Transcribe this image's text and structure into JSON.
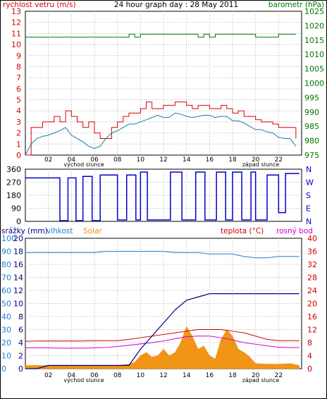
{
  "header": {
    "left_label": "rychlost vetru (m/s)",
    "title": "24 hour graph day : 28 May 2011",
    "right_label": "barometr (hPa)"
  },
  "colors": {
    "wind": "#dd0000",
    "wind_avg": "#1a7fa0",
    "baro": "#007700",
    "dir": "#0000cc",
    "rain": "#000080",
    "hum": "#1e7fd0",
    "solar": "#f0900a",
    "temp": "#cc0000",
    "dew": "#cc00cc",
    "grid": "#b4b4b4",
    "text_black": "#000000"
  },
  "x_ticks": [
    "02",
    "04",
    "06",
    "08",
    "10",
    "12",
    "14",
    "16",
    "18",
    "20",
    "22"
  ],
  "sunrise_label": "východ slunce",
  "sunset_label": "západ slunce",
  "chart_data": [
    {
      "type": "line",
      "name": "wind-baro",
      "title": "24 hour graph day : 28 May 2011",
      "ylabel_left": "rychlost vetru (m/s)",
      "ylabel_right": "barometr (hPa)",
      "ylim_left": [
        0,
        13
      ],
      "ylim_right": [
        975,
        1025
      ],
      "y_ticks_left": [
        "0",
        "1",
        "2",
        "3",
        "4",
        "5",
        "6",
        "7",
        "8",
        "9",
        "10",
        "11",
        "12",
        "13"
      ],
      "y_ticks_right": [
        "975",
        "980",
        "985",
        "990",
        "995",
        "1000",
        "1005",
        "1010",
        "1015",
        "1020",
        "1025"
      ],
      "hours": [
        0,
        0.5,
        1,
        1.5,
        2,
        2.5,
        3,
        3.5,
        4,
        4.5,
        5,
        5.5,
        6,
        6.5,
        7,
        7.5,
        8,
        8.5,
        9,
        9.5,
        10,
        10.5,
        11,
        11.5,
        12,
        12.5,
        13,
        13.5,
        14,
        14.5,
        15,
        15.5,
        16,
        16.5,
        17,
        17.5,
        18,
        18.5,
        19,
        19.5,
        20,
        20.5,
        21,
        21.5,
        22,
        22.5,
        23,
        23.5
      ],
      "gust": [
        0,
        2.5,
        2.5,
        3,
        3,
        3.5,
        3,
        4,
        3.5,
        3,
        2.5,
        3,
        2,
        1.5,
        1.5,
        2.5,
        3,
        3.5,
        3.8,
        3.8,
        4.2,
        4.8,
        4.2,
        4.2,
        4.5,
        4.5,
        4.8,
        4.8,
        4.5,
        4.2,
        4.5,
        4.5,
        4.2,
        4.2,
        4.5,
        4.2,
        3.8,
        4,
        3.5,
        3.5,
        3.2,
        3,
        3,
        2.8,
        2.5,
        2.5,
        2.5,
        1.5
      ],
      "average": [
        0,
        1,
        1.5,
        1.7,
        1.8,
        2,
        2.2,
        2.5,
        1.8,
        1.5,
        1.2,
        0.8,
        0.6,
        0.8,
        1.5,
        2,
        2.2,
        2.5,
        2.8,
        2.8,
        3,
        3.2,
        3.4,
        3.6,
        3.4,
        3.4,
        3.8,
        3.7,
        3.5,
        3.4,
        3.5,
        3.6,
        3.6,
        3.4,
        3.5,
        3.5,
        3.1,
        3.1,
        2.9,
        2.6,
        2.3,
        2.3,
        2.1,
        2,
        1.6,
        1.5,
        1.5,
        0.8
      ],
      "pressure": [
        1016,
        1016,
        1016,
        1016,
        1016,
        1016,
        1016,
        1016,
        1016,
        1016,
        1016,
        1016,
        1016,
        1016,
        1016,
        1016,
        1016,
        1016,
        1017,
        1016,
        1017,
        1017,
        1017,
        1017,
        1017,
        1017,
        1017,
        1017,
        1017,
        1017,
        1016,
        1017,
        1016,
        1017,
        1017,
        1017,
        1017,
        1017,
        1017,
        1017,
        1016,
        1016,
        1016,
        1016,
        1017,
        1017,
        1017,
        1017
      ]
    },
    {
      "type": "line",
      "name": "wind-direction",
      "ylim": [
        0,
        360
      ],
      "y_ticks_left": [
        "0",
        "90",
        "180",
        "270",
        "360"
      ],
      "y_ticks_right": [
        "N",
        "E",
        "S",
        "W",
        "N"
      ],
      "segments": [
        {
          "from": 0,
          "to": 3.0,
          "level": 300
        },
        {
          "from": 3.0,
          "to": 3.7,
          "level": 5
        },
        {
          "from": 3.7,
          "to": 4.4,
          "level": 300
        },
        {
          "from": 4.4,
          "to": 5.0,
          "level": 5
        },
        {
          "from": 5.0,
          "to": 5.8,
          "level": 310
        },
        {
          "from": 5.8,
          "to": 6.5,
          "level": 5
        },
        {
          "from": 6.5,
          "to": 8.0,
          "level": 320
        },
        {
          "from": 8.0,
          "to": 8.8,
          "level": 10
        },
        {
          "from": 8.8,
          "to": 9.6,
          "level": 320
        },
        {
          "from": 9.6,
          "to": 10.0,
          "level": 10
        },
        {
          "from": 10.0,
          "to": 10.6,
          "level": 340
        },
        {
          "from": 10.6,
          "to": 12.6,
          "level": 10
        },
        {
          "from": 12.6,
          "to": 13.6,
          "level": 340
        },
        {
          "from": 13.6,
          "to": 14.8,
          "level": 10
        },
        {
          "from": 14.8,
          "to": 15.6,
          "level": 340
        },
        {
          "from": 15.6,
          "to": 16.6,
          "level": 10
        },
        {
          "from": 16.6,
          "to": 17.4,
          "level": 340
        },
        {
          "from": 17.4,
          "to": 18.0,
          "level": 10
        },
        {
          "from": 18.0,
          "to": 18.8,
          "level": 340
        },
        {
          "from": 18.8,
          "to": 19.6,
          "level": 10
        },
        {
          "from": 19.6,
          "to": 20.0,
          "level": 340
        },
        {
          "from": 20.0,
          "to": 21.0,
          "level": 10
        },
        {
          "from": 21.0,
          "to": 22.0,
          "level": 320
        },
        {
          "from": 22.0,
          "to": 22.6,
          "level": 60
        },
        {
          "from": 22.6,
          "to": 23.8,
          "level": 330
        }
      ]
    },
    {
      "type": "line",
      "name": "rain-temp-solar",
      "legend_left": [
        "srážky (mm)",
        "vlhkost",
        "Solar"
      ],
      "legend_right": [
        "teplota (°C)",
        "rosný bod"
      ],
      "ylim_left": [
        0,
        100
      ],
      "ylim_right": [
        0,
        40
      ],
      "y_ticks_left": [
        "0",
        "10",
        "20",
        "30",
        "40",
        "50",
        "60",
        "70",
        "80",
        "90",
        "100"
      ],
      "y_ticks_left_inner": [
        "0",
        "2",
        "4",
        "6",
        "8",
        "10",
        "12",
        "14",
        "16",
        "18",
        "20"
      ],
      "y_ticks_right": [
        "0",
        "4",
        "8",
        "12",
        "16",
        "20",
        "24",
        "28",
        "32",
        "36",
        "40"
      ],
      "hours": [
        0,
        1,
        2,
        3,
        4,
        5,
        6,
        7,
        8,
        9,
        10,
        11,
        12,
        13,
        14,
        15,
        16,
        17,
        18,
        19,
        20,
        21,
        22,
        23,
        23.8
      ],
      "humidity": [
        89,
        89,
        89,
        89,
        89,
        89,
        89,
        90,
        90,
        90,
        90,
        90,
        90,
        89,
        89,
        89,
        88,
        88,
        88,
        86,
        85,
        85,
        86,
        86,
        86
      ],
      "temperature": [
        8.4,
        8.5,
        8.5,
        8.5,
        8.5,
        8.5,
        8.6,
        8.6,
        8.6,
        9,
        9.5,
        10,
        10.5,
        11,
        11.5,
        12,
        12,
        12,
        11.5,
        11,
        10,
        9,
        8.6,
        8.6,
        8.6
      ],
      "dew_point": [
        6.4,
        6.4,
        6.4,
        6.3,
        6.3,
        6.3,
        6.4,
        6.5,
        6.8,
        7.2,
        7.6,
        8,
        8.5,
        9.2,
        9.8,
        10,
        10,
        9.5,
        8.8,
        8,
        7.5,
        7,
        6.6,
        6.5,
        6.5
      ],
      "rain_total": [
        0,
        0,
        0.5,
        0.5,
        0.5,
        0.5,
        0.5,
        0.5,
        0.5,
        0.5,
        3,
        5,
        7,
        9,
        10.5,
        11,
        11.5,
        11.5,
        11.5,
        11.5,
        11.5,
        11.5,
        11.5,
        11.5,
        11.5
      ],
      "solar_x": [
        0,
        1,
        2,
        3,
        4,
        5,
        6,
        7,
        8,
        9,
        9.5,
        10,
        10.5,
        11,
        11.5,
        12,
        12.5,
        13,
        13.5,
        14,
        14.5,
        15,
        15.5,
        16,
        16.5,
        17,
        17.5,
        18,
        18.5,
        19,
        19.5,
        20,
        21,
        22,
        23,
        23.8
      ],
      "solar": [
        0.5,
        0.5,
        0.5,
        0.5,
        0.5,
        0.5,
        0.5,
        0.5,
        0.5,
        0.7,
        1,
        2,
        2.5,
        1.8,
        2,
        3,
        2,
        2.5,
        4,
        6.5,
        5,
        3,
        3.5,
        2,
        1.5,
        4.5,
        6,
        5,
        3,
        2.5,
        1.8,
        0.8,
        0.7,
        0.7,
        0.8,
        0.5
      ]
    }
  ]
}
